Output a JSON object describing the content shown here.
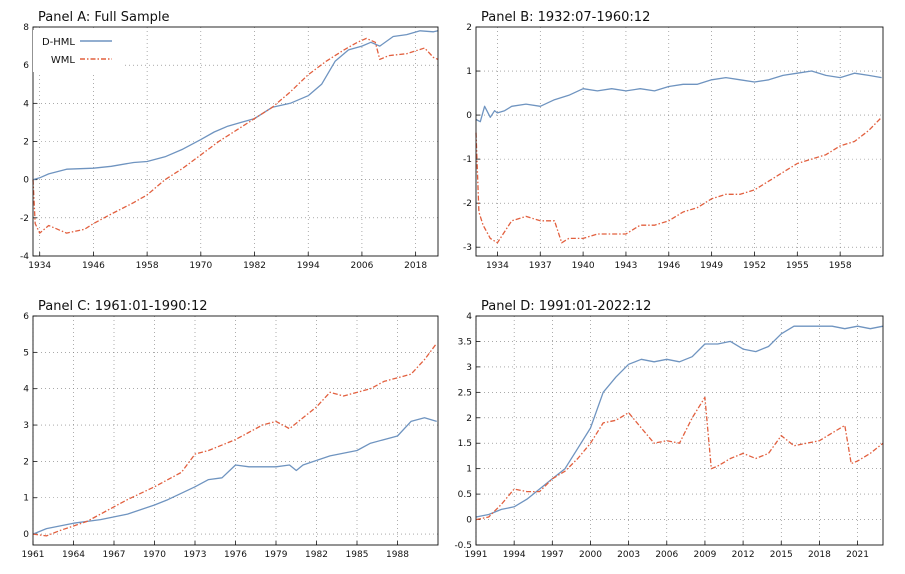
{
  "colors": {
    "dhml": "#6f94c0",
    "wml": "#e2603f"
  },
  "legend": {
    "dhml": "D-HML",
    "wml": "WML"
  },
  "chart_data": [
    {
      "type": "line",
      "title": "Panel A: Full Sample",
      "xlim": [
        1932.5,
        2023.0
      ],
      "ylim": [
        -4,
        8
      ],
      "xticks": [
        1934,
        1946,
        1958,
        1970,
        1982,
        1994,
        2006,
        2018
      ],
      "yticks": [
        -4,
        -2,
        0,
        2,
        4,
        6,
        8
      ],
      "grid": true,
      "legend_position": "top-left",
      "series": [
        {
          "name": "D-HML",
          "x": [
            1932.5,
            1934,
            1936,
            1940,
            1946,
            1950,
            1955,
            1958,
            1962,
            1966,
            1970,
            1973,
            1976,
            1979,
            1982,
            1986,
            1990,
            1994,
            1997,
            2000,
            2003,
            2006,
            2008,
            2010,
            2013,
            2016,
            2019,
            2022,
            2023
          ],
          "y": [
            0,
            0.1,
            0.3,
            0.55,
            0.6,
            0.7,
            0.9,
            0.95,
            1.2,
            1.6,
            2.1,
            2.5,
            2.8,
            3.0,
            3.2,
            3.8,
            4.0,
            4.4,
            5.0,
            6.2,
            6.8,
            7.0,
            7.2,
            7.0,
            7.5,
            7.6,
            7.8,
            7.75,
            7.8
          ]
        },
        {
          "name": "WML",
          "x": [
            1932.5,
            1933,
            1934,
            1936,
            1940,
            1944,
            1946,
            1950,
            1955,
            1958,
            1962,
            1966,
            1970,
            1974,
            1978,
            1982,
            1986,
            1990,
            1994,
            1998,
            2002,
            2005,
            2007,
            2009,
            2010,
            2012,
            2016,
            2020,
            2022,
            2023
          ],
          "y": [
            0,
            -2.3,
            -2.8,
            -2.4,
            -2.8,
            -2.6,
            -2.3,
            -1.8,
            -1.2,
            -0.8,
            0,
            0.6,
            1.3,
            2.0,
            2.6,
            3.2,
            3.8,
            4.6,
            5.5,
            6.2,
            6.8,
            7.2,
            7.4,
            7.2,
            6.3,
            6.5,
            6.6,
            6.9,
            6.4,
            6.3
          ]
        }
      ]
    },
    {
      "type": "line",
      "title": "Panel B: 1932:07-1960:12",
      "xlim": [
        1932.5,
        1961.0
      ],
      "ylim": [
        -3.2,
        2
      ],
      "xticks": [
        1934,
        1937,
        1940,
        1943,
        1946,
        1949,
        1952,
        1955,
        1958
      ],
      "yticks": [
        -3,
        -2,
        -1,
        0,
        1,
        2
      ],
      "grid": true,
      "series": [
        {
          "name": "D-HML",
          "x": [
            1932.5,
            1932.8,
            1933.1,
            1933.5,
            1933.8,
            1934,
            1934.5,
            1935,
            1936,
            1937,
            1938,
            1939,
            1940,
            1941,
            1942,
            1943,
            1944,
            1945,
            1946,
            1947,
            1948,
            1949,
            1950,
            1951,
            1952,
            1953,
            1954,
            1955,
            1956,
            1957,
            1958,
            1959,
            1960,
            1960.9
          ],
          "y": [
            -0.1,
            -0.15,
            0.2,
            -0.05,
            0.1,
            0.05,
            0.1,
            0.2,
            0.25,
            0.2,
            0.35,
            0.45,
            0.6,
            0.55,
            0.6,
            0.55,
            0.6,
            0.55,
            0.65,
            0.7,
            0.7,
            0.8,
            0.85,
            0.8,
            0.75,
            0.8,
            0.9,
            0.95,
            1.0,
            0.9,
            0.85,
            0.95,
            0.9,
            0.85
          ]
        },
        {
          "name": "WML",
          "x": [
            1932.5,
            1932.7,
            1933,
            1933.5,
            1934,
            1935,
            1936,
            1937,
            1938,
            1938.5,
            1939,
            1940,
            1941,
            1942,
            1943,
            1944,
            1945,
            1946,
            1947,
            1948,
            1949,
            1950,
            1951,
            1952,
            1953,
            1954,
            1955,
            1956,
            1957,
            1958,
            1959,
            1960,
            1960.9
          ],
          "y": [
            -0.4,
            -2.2,
            -2.5,
            -2.8,
            -2.9,
            -2.4,
            -2.3,
            -2.4,
            -2.4,
            -2.9,
            -2.8,
            -2.8,
            -2.7,
            -2.7,
            -2.7,
            -2.5,
            -2.5,
            -2.4,
            -2.2,
            -2.1,
            -1.9,
            -1.8,
            -1.8,
            -1.7,
            -1.5,
            -1.3,
            -1.1,
            -1.0,
            -0.9,
            -0.7,
            -0.6,
            -0.35,
            -0.05
          ]
        }
      ]
    },
    {
      "type": "line",
      "title": "Panel C: 1961:01-1990:12",
      "xlim": [
        1961.0,
        1991.0
      ],
      "ylim": [
        -0.3,
        6
      ],
      "xticks": [
        1961,
        1964,
        1967,
        1970,
        1973,
        1976,
        1979,
        1982,
        1985,
        1988
      ],
      "yticks": [
        0,
        1,
        2,
        3,
        4,
        5,
        6
      ],
      "grid": true,
      "series": [
        {
          "name": "D-HML",
          "x": [
            1961,
            1962,
            1964,
            1966,
            1968,
            1970,
            1971,
            1973,
            1974,
            1975,
            1976,
            1977,
            1979,
            1980,
            1980.5,
            1981,
            1983,
            1985,
            1986,
            1988,
            1989,
            1990,
            1990.9
          ],
          "y": [
            0,
            0.15,
            0.3,
            0.4,
            0.55,
            0.8,
            0.95,
            1.3,
            1.5,
            1.55,
            1.9,
            1.85,
            1.85,
            1.9,
            1.75,
            1.9,
            2.15,
            2.3,
            2.5,
            2.7,
            3.1,
            3.2,
            3.1
          ]
        },
        {
          "name": "WML",
          "x": [
            1961,
            1962,
            1963,
            1965,
            1967,
            1968,
            1970,
            1972,
            1973,
            1974,
            1976,
            1978,
            1979,
            1980,
            1981,
            1982,
            1983,
            1984,
            1986,
            1987,
            1989,
            1990,
            1990.9
          ],
          "y": [
            0,
            -0.05,
            0.1,
            0.35,
            0.75,
            0.95,
            1.3,
            1.7,
            2.2,
            2.3,
            2.6,
            3.0,
            3.1,
            2.9,
            3.2,
            3.5,
            3.9,
            3.8,
            4.0,
            4.2,
            4.4,
            4.8,
            5.25
          ]
        }
      ]
    },
    {
      "type": "line",
      "title": "Panel D: 1991:01-2022:12",
      "xlim": [
        1991.0,
        2023.0
      ],
      "ylim": [
        -0.5,
        4
      ],
      "xticks": [
        1991,
        1994,
        1997,
        2000,
        2003,
        2006,
        2009,
        2012,
        2015,
        2018,
        2021
      ],
      "yticks": [
        -0.5,
        0,
        0.5,
        1,
        1.5,
        2,
        2.5,
        3,
        3.5,
        4
      ],
      "grid": true,
      "series": [
        {
          "name": "D-HML",
          "x": [
            1991,
            1992,
            1993,
            1994,
            1995,
            1996,
            1997,
            1998,
            1999,
            2000,
            2001,
            2002,
            2003,
            2004,
            2005,
            2006,
            2007,
            2008,
            2009,
            2010,
            2011,
            2012,
            2013,
            2014,
            2015,
            2016,
            2017,
            2018,
            2019,
            2020,
            2021,
            2022,
            2023
          ],
          "y": [
            0.05,
            0.1,
            0.2,
            0.25,
            0.4,
            0.6,
            0.8,
            1.0,
            1.4,
            1.8,
            2.5,
            2.8,
            3.05,
            3.15,
            3.1,
            3.15,
            3.1,
            3.2,
            3.45,
            3.45,
            3.5,
            3.35,
            3.3,
            3.4,
            3.65,
            3.8,
            3.8,
            3.8,
            3.8,
            3.75,
            3.8,
            3.75,
            3.8
          ]
        },
        {
          "name": "WML",
          "x": [
            1991,
            1992,
            1993,
            1994,
            1995,
            1996,
            1997,
            1998,
            1999,
            2000,
            2001,
            2002,
            2003,
            2004,
            2005,
            2006,
            2007,
            2008,
            2009,
            2009.5,
            2010,
            2011,
            2012,
            2013,
            2014,
            2015,
            2016,
            2017,
            2018,
            2019,
            2020,
            2020.5,
            2021,
            2022,
            2023
          ],
          "y": [
            0,
            0.05,
            0.3,
            0.6,
            0.55,
            0.55,
            0.8,
            0.95,
            1.2,
            1.5,
            1.9,
            1.95,
            2.1,
            1.8,
            1.5,
            1.55,
            1.5,
            2.0,
            2.4,
            1.0,
            1.05,
            1.2,
            1.3,
            1.2,
            1.3,
            1.65,
            1.45,
            1.5,
            1.55,
            1.7,
            1.85,
            1.1,
            1.15,
            1.3,
            1.5
          ]
        }
      ]
    }
  ]
}
